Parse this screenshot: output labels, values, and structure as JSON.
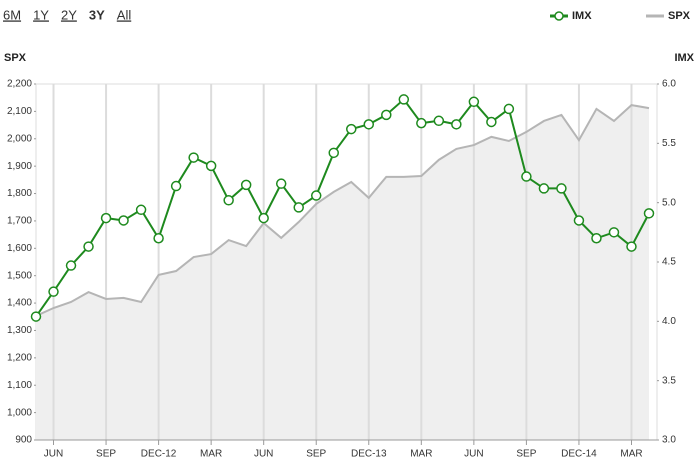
{
  "chart_data": {
    "type": "line",
    "range_options": [
      "6M",
      "1Y",
      "2Y",
      "3Y",
      "All"
    ],
    "selected_range": "3Y",
    "y_label": "SPX",
    "y2_label": "IMX",
    "categories": [
      null,
      "JUN",
      null,
      null,
      "SEP",
      null,
      null,
      "DEC-12",
      null,
      null,
      "MAR",
      null,
      null,
      "JUN",
      null,
      null,
      "SEP",
      null,
      null,
      "DEC-13",
      null,
      null,
      "MAR",
      null,
      null,
      "JUN",
      null,
      null,
      "SEP",
      null,
      null,
      "DEC-14",
      null,
      null,
      "MAR",
      null
    ],
    "series": [
      {
        "name": "IMX",
        "color": "#1e8a1e",
        "axis": "y2",
        "values": [
          4.04,
          4.25,
          4.47,
          4.63,
          4.87,
          4.85,
          4.94,
          4.7,
          5.14,
          5.38,
          5.31,
          5.02,
          5.15,
          4.87,
          5.16,
          4.96,
          5.06,
          5.42,
          5.62,
          5.66,
          5.74,
          5.87,
          5.67,
          5.69,
          5.66,
          5.85,
          5.68,
          5.79,
          5.22,
          5.12,
          5.12,
          4.85,
          4.7,
          4.75,
          4.63,
          4.91
        ]
      },
      {
        "name": "SPX",
        "color": "#b5b5b5",
        "values": [
          1353,
          1382,
          1404,
          1440,
          1415,
          1419,
          1404,
          1503,
          1517,
          1568,
          1579,
          1630,
          1608,
          1692,
          1638,
          1696,
          1762,
          1806,
          1842,
          1784,
          1861,
          1861,
          1864,
          1923,
          1963,
          1977,
          2007,
          1992,
          2025,
          2065,
          2087,
          1995,
          2109,
          2065,
          2123,
          2112
        ]
      }
    ],
    "ylim": [
      900,
      2200
    ],
    "yticks": [
      900,
      {
        "value": 1000,
        "label": "1,000"
      },
      {
        "value": 1100,
        "label": "1,100"
      },
      {
        "value": 1200,
        "label": "1,200"
      },
      {
        "value": 1300,
        "label": "1,300"
      },
      {
        "value": 1400,
        "label": "1,400"
      },
      {
        "value": 1500,
        "label": "1,500"
      },
      {
        "value": 1600,
        "label": "1,600"
      },
      {
        "value": 1700,
        "label": "1,700"
      },
      {
        "value": 1800,
        "label": "1,800"
      },
      {
        "value": 1900,
        "label": "1,900"
      },
      {
        "value": 2000,
        "label": "2,000"
      },
      {
        "value": 2100,
        "label": "2,100"
      },
      {
        "value": 2200,
        "label": "2,200"
      }
    ],
    "y2lim": [
      3,
      6
    ],
    "y2ticks": [
      {
        "value": 3,
        "label": "3.0"
      },
      3.5,
      {
        "value": 4,
        "label": "4.0"
      },
      4.5,
      {
        "value": 5,
        "label": "5.0"
      },
      5.5,
      {
        "value": 6,
        "label": "6.0"
      }
    ],
    "grid": true
  }
}
